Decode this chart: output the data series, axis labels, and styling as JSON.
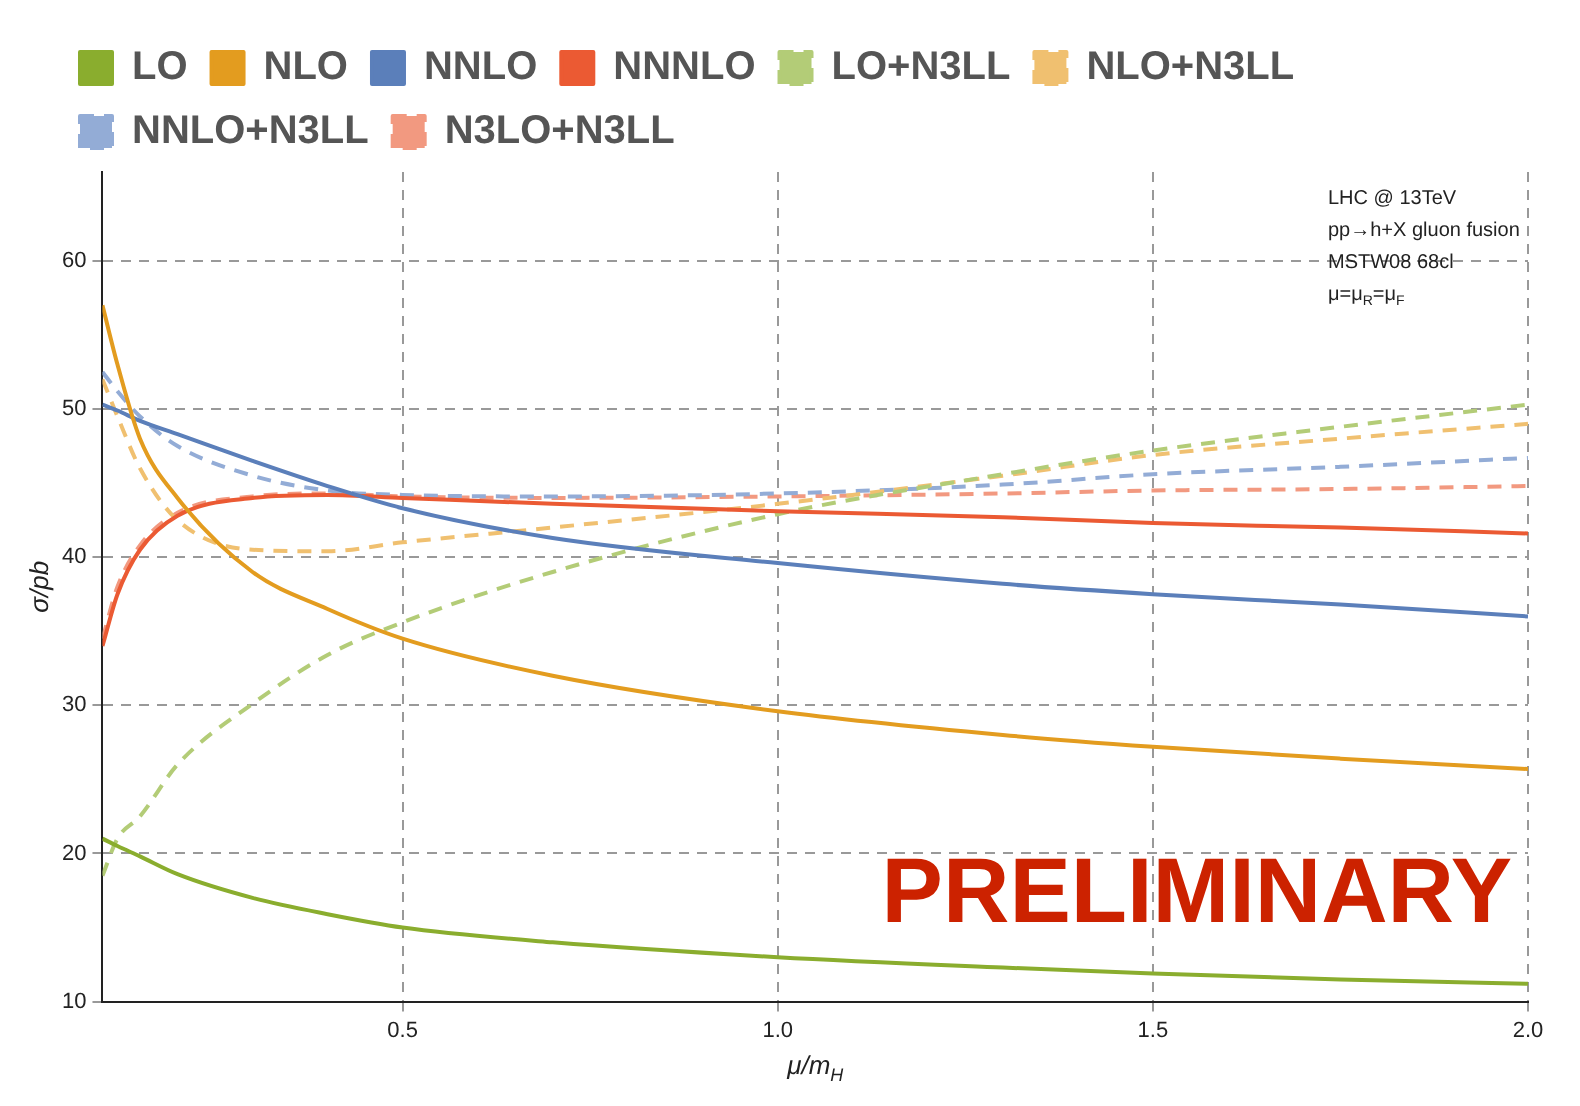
{
  "chart_data": {
    "type": "line",
    "xlabel": "μ/m$_{H}$",
    "ylabel": "σ/pb",
    "annotations": [
      "LHC @ 13TeV",
      "pp→h+X gluon fusion",
      "MSTW08 68cl",
      "μ=μ$_{R}$=μ$_{F}$",
      "PRELIMINARY"
    ],
    "x": [
      0.1,
      0.12,
      0.15,
      0.2,
      0.3,
      0.4,
      0.5,
      0.7,
      1.0,
      1.3,
      1.5,
      1.75,
      2.0
    ],
    "series": [
      {
        "name": "LO",
        "color": "#8aad2e",
        "line_style": "solid",
        "values": [
          21,
          20.5,
          19.8,
          18.6,
          17,
          15.9,
          15,
          14,
          13,
          12.3,
          11.9,
          11.5,
          11.2
        ]
      },
      {
        "name": "NLO",
        "color": "#e39c1f",
        "line_style": "solid",
        "values": [
          57,
          53,
          48,
          44,
          39,
          36.5,
          34.5,
          32,
          29.6,
          28,
          27.2,
          26.4,
          25.7
        ]
      },
      {
        "name": "NNLO",
        "color": "#5b7fba",
        "line_style": "solid",
        "values": [
          50.3,
          49.9,
          49.2,
          48.3,
          46.5,
          44.8,
          43.3,
          41.3,
          39.6,
          38.2,
          37.5,
          36.8,
          36
        ]
      },
      {
        "name": "NNNLO",
        "color": "#eb5a33",
        "line_style": "solid",
        "values": [
          34,
          37.5,
          40.5,
          42.8,
          44,
          44.2,
          44,
          43.6,
          43.1,
          42.7,
          42.3,
          42,
          41.6
        ]
      },
      {
        "name": "LO+N3LL",
        "color": "#b3cc77",
        "line_style": "dashed",
        "values": [
          18.5,
          21,
          22.5,
          26,
          30.1,
          33.4,
          35.6,
          39,
          42.9,
          45.6,
          47.2,
          48.8,
          50.3
        ]
      },
      {
        "name": "NLO+N3LL",
        "color": "#f0c070",
        "line_style": "dashed",
        "values": [
          52,
          49.5,
          46,
          42.5,
          40.5,
          40.4,
          41,
          42,
          43.6,
          45.5,
          46.9,
          48,
          49
        ]
      },
      {
        "name": "NNLO+N3LL",
        "color": "#93acd6",
        "line_style": "dashed",
        "values": [
          52.5,
          51.2,
          49.5,
          47.5,
          45.5,
          44.5,
          44.2,
          44.1,
          44.3,
          44.9,
          45.6,
          46.1,
          46.7
        ]
      },
      {
        "name": "N3LO+N3LL",
        "color": "#f29980",
        "line_style": "dashed",
        "values": [
          34.5,
          38,
          40.8,
          43,
          44.1,
          44.3,
          44.1,
          44,
          44.1,
          44.3,
          44.5,
          44.6,
          44.8
        ]
      }
    ],
    "xlim": [
      0.1,
      2.0
    ],
    "ylim": [
      10,
      66
    ],
    "xticks": [
      0.5,
      {
        "value": 1,
        "label": "1.0"
      },
      1.5,
      {
        "value": 2,
        "label": "2.0"
      }
    ],
    "yticks": [
      10,
      20,
      30,
      40,
      50,
      60
    ],
    "grid": true,
    "legend": "top left",
    "marker": "none"
  }
}
